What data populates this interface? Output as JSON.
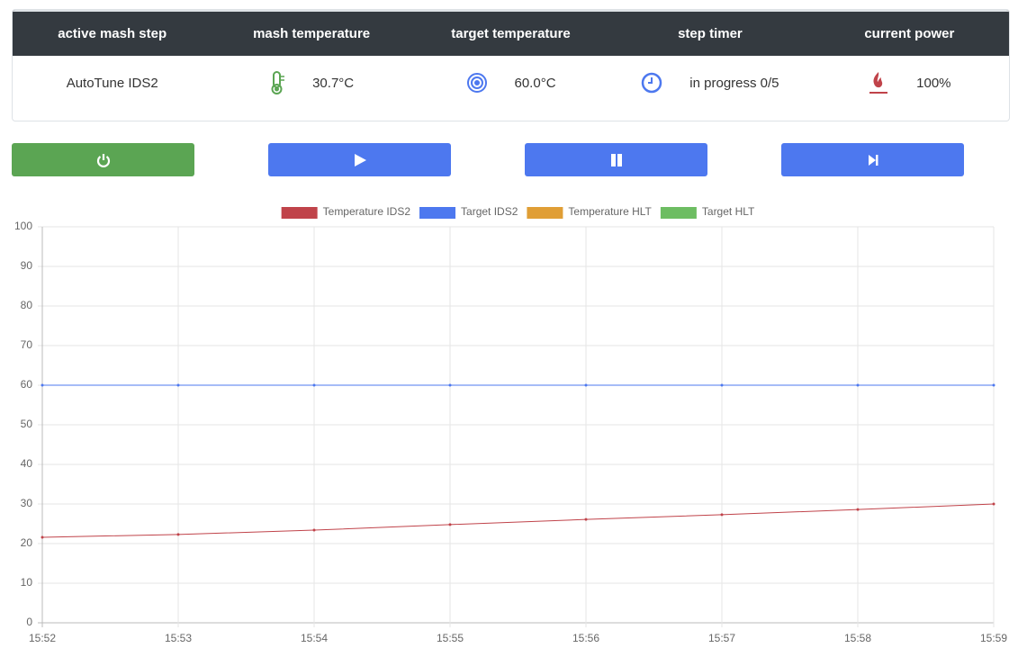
{
  "table": {
    "headers": [
      "active mash step",
      "mash temperature",
      "target temperature",
      "step timer",
      "current power"
    ],
    "rows": [
      [
        "AutoTune IDS2",
        "30.7°C",
        "60.0°C",
        "in progress 0/5",
        "100%"
      ]
    ]
  },
  "chart_data": {
    "type": "line",
    "categories": [
      "15:52",
      "15:53",
      "15:54",
      "15:55",
      "15:56",
      "15:57",
      "15:58",
      "15:59"
    ],
    "series": [
      {
        "name": "Temperature IDS2",
        "color": "#c0434a",
        "values": [
          21.6,
          22.3,
          23.4,
          24.8,
          26.1,
          27.3,
          28.6,
          30.0
        ]
      },
      {
        "name": "Target IDS2",
        "color": "#4d78ef",
        "values": [
          60,
          60,
          60,
          60,
          60,
          60,
          60,
          60
        ]
      },
      {
        "name": "Temperature HLT",
        "color": "#e09e35",
        "values": [
          null,
          null,
          null,
          null,
          null,
          null,
          null,
          null
        ]
      },
      {
        "name": "Target HLT",
        "color": "#6dbd62",
        "values": [
          null,
          null,
          null,
          null,
          null,
          null,
          null,
          null
        ]
      }
    ],
    "ylim": [
      0,
      100
    ],
    "yticks": [
      0,
      10,
      20,
      30,
      40,
      50,
      60,
      70,
      80,
      90,
      100
    ],
    "grid": true,
    "legend": "top"
  }
}
